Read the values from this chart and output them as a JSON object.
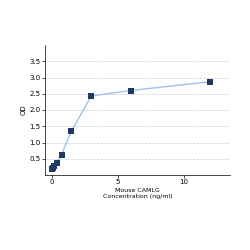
{
  "x": [
    0.0,
    0.047,
    0.094,
    0.188,
    0.375,
    0.75,
    1.5,
    3,
    6,
    12
  ],
  "y": [
    0.175,
    0.19,
    0.22,
    0.28,
    0.38,
    0.63,
    1.35,
    2.43,
    2.6,
    2.87
  ],
  "xlabel_line1": "Mouse CAMLG",
  "xlabel_line2": "Concentration (ng/ml)",
  "ylabel": "OD",
  "xlim": [
    -0.5,
    13.5
  ],
  "ylim": [
    0,
    4.0
  ],
  "yticks": [
    0.5,
    1.0,
    1.5,
    2.0,
    2.5,
    3.0,
    3.5
  ],
  "xtick_positions": [
    0,
    5,
    10
  ],
  "marker_color": "#1f3864",
  "line_color": "#9dc3e6",
  "grid_color": "#cccccc",
  "background_color": "#ffffff",
  "marker_size": 4,
  "line_width": 1.0
}
